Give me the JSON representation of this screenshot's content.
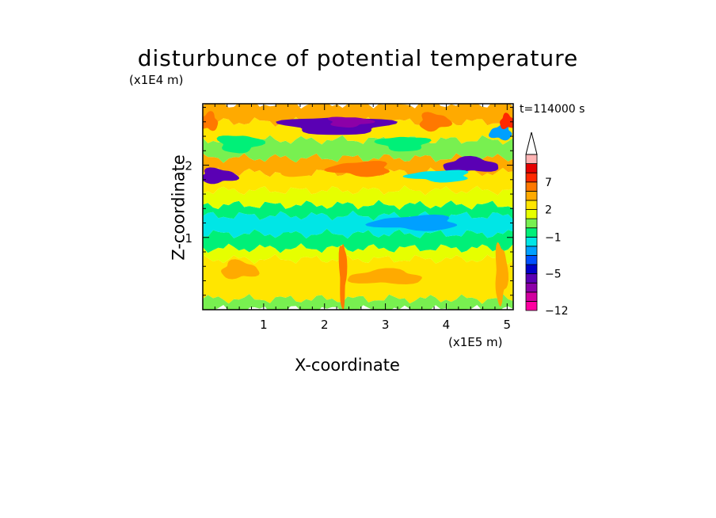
{
  "chart_data": {
    "type": "heatmap",
    "title": "disturbunce of potential temperature",
    "xlabel": "X-coordinate",
    "ylabel": "Z-coordinate",
    "x_unit": "(x1E5 m)",
    "y_unit": "(x1E4 m)",
    "time_label": "t=114000 s",
    "x_ticks": [
      "1",
      "2",
      "3",
      "4",
      "5"
    ],
    "y_ticks": [
      "1",
      "2"
    ],
    "xlim": [
      0,
      5.1
    ],
    "ylim": [
      0,
      2.85
    ],
    "colorbar": {
      "tick_labels": [
        "7",
        "2",
        "−1",
        "−5",
        "−12"
      ],
      "tick_values": [
        7,
        2,
        -1,
        -5,
        -12
      ],
      "levels": [
        -12,
        -10,
        -8,
        -6,
        -5,
        -4,
        -3,
        -2,
        -1,
        0,
        1,
        2,
        3,
        5,
        7,
        9,
        11
      ],
      "colors": [
        "#ff00a0",
        "#d2009f",
        "#8c00a8",
        "#5a00b4",
        "#0000c8",
        "#0050ff",
        "#00a0ff",
        "#00e6e6",
        "#00f078",
        "#78f050",
        "#e6ff00",
        "#ffe600",
        "#ffaa00",
        "#ff7800",
        "#ff2800",
        "#e60000",
        "#ffb4b4"
      ],
      "extend": "max"
    },
    "field_bands": [
      {
        "z_from": 0.0,
        "z_to": 0.15,
        "value": 0.5
      },
      {
        "z_from": 0.15,
        "z_to": 0.7,
        "value": 2.5
      },
      {
        "z_from": 0.7,
        "z_to": 0.85,
        "value": 1.5
      },
      {
        "z_from": 0.85,
        "z_to": 1.05,
        "value": -0.5
      },
      {
        "z_from": 1.05,
        "z_to": 1.3,
        "value": -1.5
      },
      {
        "z_from": 1.3,
        "z_to": 1.45,
        "value": -0.5
      },
      {
        "z_from": 1.45,
        "z_to": 1.65,
        "value": 1.5
      },
      {
        "z_from": 1.65,
        "z_to": 1.9,
        "value": 2.5
      },
      {
        "z_from": 1.9,
        "z_to": 2.1,
        "value": 4.0
      },
      {
        "z_from": 2.1,
        "z_to": 2.35,
        "value": 0.5
      },
      {
        "z_from": 2.35,
        "z_to": 2.6,
        "value": 2.5
      },
      {
        "z_from": 2.6,
        "z_to": 2.85,
        "value": 4.0
      }
    ],
    "features": [
      {
        "x": 2.2,
        "z": 2.55,
        "rx": 0.85,
        "rz": 0.12,
        "value": -5.5
      },
      {
        "x": 2.4,
        "z": 2.6,
        "rx": 0.35,
        "rz": 0.07,
        "value": -6.5
      },
      {
        "x": 0.25,
        "z": 1.85,
        "rx": 0.3,
        "rz": 0.1,
        "value": -5.5
      },
      {
        "x": 4.4,
        "z": 2.0,
        "rx": 0.45,
        "rz": 0.1,
        "value": -5.5
      },
      {
        "x": 4.9,
        "z": 2.45,
        "rx": 0.18,
        "rz": 0.1,
        "value": -2.5
      },
      {
        "x": 3.9,
        "z": 1.85,
        "rx": 0.5,
        "rz": 0.08,
        "value": -1.5
      },
      {
        "x": 3.3,
        "z": 2.3,
        "rx": 0.4,
        "rz": 0.1,
        "value": -0.5
      },
      {
        "x": 0.6,
        "z": 2.3,
        "rx": 0.35,
        "rz": 0.12,
        "value": -0.5
      },
      {
        "x": 3.8,
        "z": 2.6,
        "rx": 0.25,
        "rz": 0.12,
        "value": 6.0
      },
      {
        "x": 5.0,
        "z": 2.6,
        "rx": 0.12,
        "rz": 0.1,
        "value": 8.0
      },
      {
        "x": 0.1,
        "z": 2.6,
        "rx": 0.15,
        "rz": 0.12,
        "value": 6.0
      },
      {
        "x": 2.6,
        "z": 1.95,
        "rx": 0.5,
        "rz": 0.1,
        "value": 6.0
      },
      {
        "x": 1.5,
        "z": 1.95,
        "rx": 0.4,
        "rz": 0.1,
        "value": 4.0
      },
      {
        "x": 2.3,
        "z": 0.5,
        "rx": 0.06,
        "rz": 0.45,
        "value": 6.0
      },
      {
        "x": 4.9,
        "z": 0.5,
        "rx": 0.1,
        "rz": 0.4,
        "value": 4.0
      },
      {
        "x": 0.6,
        "z": 0.55,
        "rx": 0.3,
        "rz": 0.12,
        "value": 4.0
      },
      {
        "x": 3.0,
        "z": 0.45,
        "rx": 0.6,
        "rz": 0.1,
        "value": 4.0
      },
      {
        "x": 3.5,
        "z": 1.2,
        "rx": 0.7,
        "rz": 0.1,
        "value": -2.5
      },
      {
        "x": 1.2,
        "z": 1.15,
        "rx": 0.4,
        "rz": 0.08,
        "value": -1.5
      }
    ]
  }
}
